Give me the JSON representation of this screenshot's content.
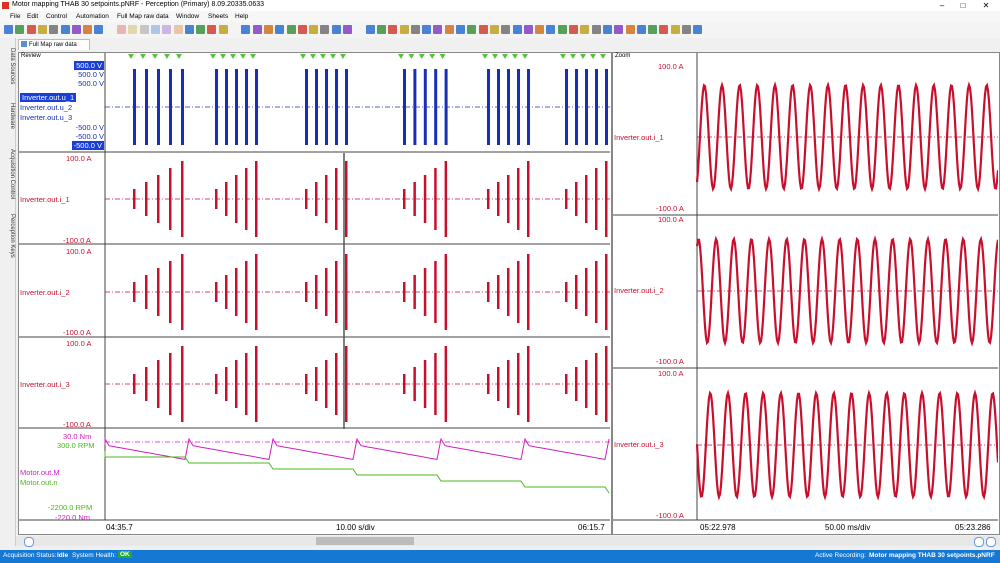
{
  "window": {
    "title": "Motor mapping THAB 30 setpoints.pNRF - Perception (Primary) 8.09.20335.0633"
  },
  "menu": [
    "File",
    "Edit",
    "Control",
    "Automation",
    "Full Map raw data",
    "Window",
    "Sheets",
    "Help"
  ],
  "tab": {
    "label": "Full Map raw data"
  },
  "side_tabs": [
    "Data Sources",
    "Hardware",
    "Acquisition Control",
    "Perception Keys"
  ],
  "review": {
    "title": "Review",
    "voltage": {
      "scale_top": [
        "500.0 V",
        "500.0 V",
        "500.0 V"
      ],
      "channels": [
        "Inverter.out.u_1",
        "Inverter.out.u_2",
        "Inverter.out.u_3"
      ],
      "scale_bottom": [
        "-500.0 V",
        "-500.0 V",
        "-500.0 V"
      ]
    },
    "i1": {
      "top": "100.0 A",
      "name": "Inverter.out.i_1",
      "bottom": "-100.0 A"
    },
    "i2": {
      "top": "100.0 A",
      "name": "Inverter.out.i_2",
      "bottom": "-100.0 A"
    },
    "i3": {
      "top": "100.0 A",
      "name": "Inverter.out.i_3",
      "bottom": "-100.0 A"
    },
    "motor": {
      "top1": "30.0 Nm",
      "top2": "300.0 RPM",
      "name1": "Motor.out.M",
      "name2": "Motor.out.n",
      "bottom1": "-2200.0 RPM",
      "bottom2": "-220.0 Nm"
    },
    "time": {
      "start": "04:35.7",
      "div": "10.00 s/div",
      "end": "06:15.7"
    }
  },
  "zoom": {
    "title": "Zoom",
    "i1": {
      "top": "100.0 A",
      "name": "Inverter.out.i_1",
      "bottom": "-100.0 A"
    },
    "i2": {
      "top": "100.0 A",
      "name": "Inverter.out.i_2",
      "bottom": "-100.0 A"
    },
    "i3": {
      "top": "100.0 A",
      "name": "Inverter.out.i_3",
      "bottom": "-100.0 A"
    },
    "time": {
      "start": "05:22.978",
      "div": "50.00 ms/div",
      "end": "05:23.286"
    }
  },
  "status": {
    "acq_label": "Acquisition Status:",
    "acq_value": "Idle",
    "health_label": "System Health:",
    "health_value": "OK",
    "active_label": "Active Recording:",
    "active_value": "Motor mapping THAB 30 setpoints.pNRF"
  },
  "colors": {
    "voltage": "#1a2fb8",
    "current": "#c8102e",
    "torque": "#d020c0",
    "speed": "#4ab820",
    "status": "#1478d4"
  }
}
